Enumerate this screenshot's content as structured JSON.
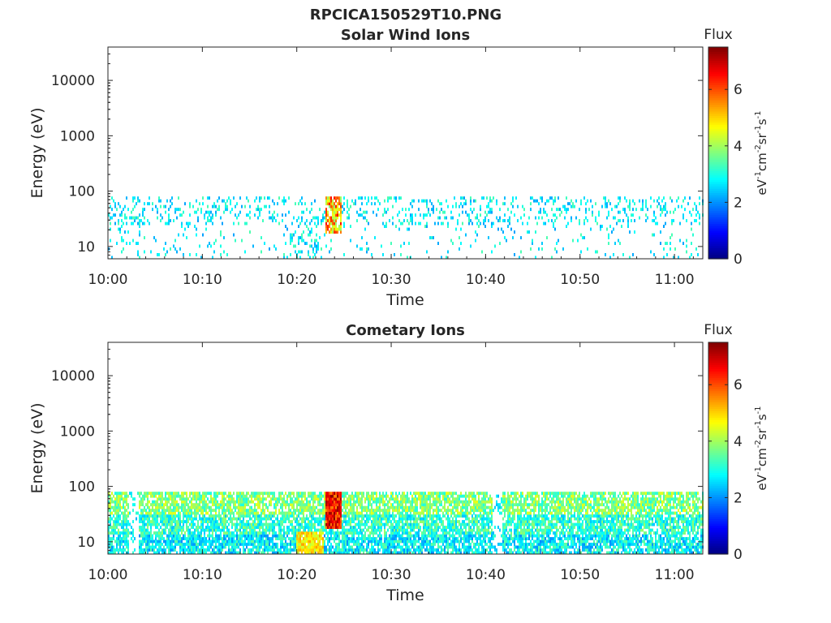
{
  "figure_title": "RPCICA150529T10.PNG",
  "colorbar": {
    "title": "Flux",
    "ticks": [
      "0",
      "2",
      "4",
      "6"
    ],
    "unit_parts": [
      {
        "text": "eV",
        "sup": false
      },
      {
        "text": "-1",
        "sup": true
      },
      {
        "text": "cm",
        "sup": false
      },
      {
        "text": "-2",
        "sup": true
      },
      {
        "text": "sr",
        "sup": false
      },
      {
        "text": "-1",
        "sup": true
      },
      {
        "text": "s",
        "sup": false
      },
      {
        "text": "-1",
        "sup": true
      }
    ],
    "range": [
      0,
      7.5
    ],
    "colormap": "jet"
  },
  "chart_data": [
    {
      "type": "heatmap",
      "title": "Solar Wind Ions",
      "xlabel": "Time",
      "ylabel": "Energy (eV)",
      "x_ticks": [
        "10:00",
        "10:10",
        "10:20",
        "10:30",
        "10:40",
        "10:50",
        "11:00"
      ],
      "y_ticks": [
        "10",
        "100",
        "1000",
        "10000"
      ],
      "xlim_minutes_after_10_00": [
        0,
        63
      ],
      "ylim": [
        6,
        40000
      ],
      "y_scale": "log",
      "data_energy_range": [
        6,
        80
      ],
      "colorbar_label": "Flux",
      "features": [
        {
          "time": "10:00-11:03",
          "energy_range": [
            25,
            80
          ],
          "flux": 2.5,
          "description": "sparse cyan speckle"
        },
        {
          "time": "10:19-10:22",
          "energy_range": [
            6,
            20
          ],
          "flux": 2.8,
          "description": "low-energy patch"
        },
        {
          "time": "10:23-10:24",
          "energy_range": [
            18,
            70
          ],
          "flux": 6.0,
          "description": "flux peak"
        }
      ]
    },
    {
      "type": "heatmap",
      "title": "Cometary Ions",
      "xlabel": "Time",
      "ylabel": "Energy (eV)",
      "x_ticks": [
        "10:00",
        "10:10",
        "10:20",
        "10:30",
        "10:40",
        "10:50",
        "11:00"
      ],
      "y_ticks": [
        "10",
        "100",
        "1000",
        "10000"
      ],
      "xlim_minutes_after_10_00": [
        0,
        63
      ],
      "ylim": [
        6,
        40000
      ],
      "y_scale": "log",
      "data_energy_range": [
        6,
        80
      ],
      "colorbar_label": "Flux",
      "features": [
        {
          "time": "10:00-11:03",
          "energy_range": [
            6,
            80
          ],
          "flux": 3.5,
          "description": "continuous broad band, yellow-green core near 30-80 eV"
        },
        {
          "time": "10:20-10:22",
          "energy_range": [
            6,
            15
          ],
          "flux": 4.8,
          "description": "low-energy dip"
        },
        {
          "time": "10:23-10:24",
          "energy_range": [
            20,
            80
          ],
          "flux": 7.0,
          "description": "intense red peak"
        }
      ]
    }
  ]
}
